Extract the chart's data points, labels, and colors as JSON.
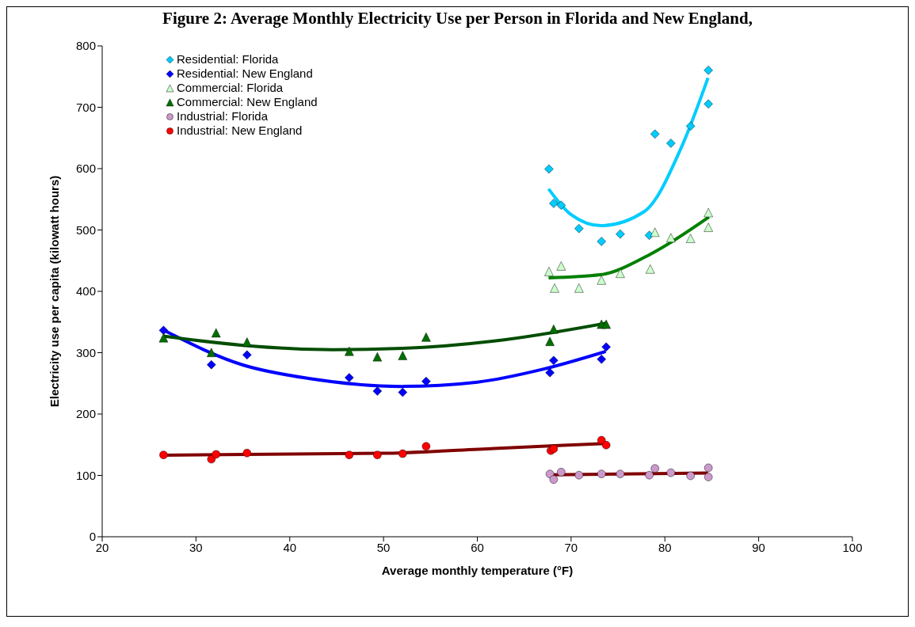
{
  "chart_data": {
    "type": "scatter",
    "title": "Figure 2: Average Monthly Electricity Use per Person in Florida and New England,",
    "xlabel": "Average monthly temperature (°F)",
    "ylabel": "Electricity use per capita (kilowatt hours)",
    "xlim": [
      20,
      100
    ],
    "xticks": [
      20,
      30,
      40,
      50,
      60,
      70,
      80,
      90,
      100
    ],
    "ylim": [
      0,
      800
    ],
    "yticks": [
      0,
      100,
      200,
      300,
      400,
      500,
      600,
      700,
      800
    ],
    "grid": false,
    "legend": "top left",
    "series": [
      {
        "name": "Residential: Florida",
        "color": "#00ccff",
        "marker": "diamond",
        "x": [
          67.6,
          68.1,
          68.9,
          70.8,
          73.2,
          75.2,
          78.3,
          78.9,
          80.6,
          82.7,
          84.6,
          84.6
        ],
        "values": [
          600,
          544,
          541,
          503,
          482,
          494,
          492,
          657,
          642,
          670,
          761,
          706
        ]
      },
      {
        "name": "Residential: New England",
        "color": "#0000ff",
        "marker": "diamond",
        "x": [
          26.5,
          31.6,
          32.1,
          35.4,
          46.3,
          49.3,
          52.0,
          54.5,
          67.7,
          68.1,
          73.2,
          73.7
        ],
        "values": [
          337,
          281,
          null,
          297,
          260,
          238,
          236,
          254,
          268,
          288,
          290,
          310
        ]
      },
      {
        "name": "Commercial: Florida",
        "color": "#ccffcc",
        "marker": "triangle",
        "x": [
          67.6,
          68.2,
          68.9,
          70.8,
          73.2,
          75.2,
          78.4,
          78.9,
          80.6,
          82.7,
          84.6,
          84.6
        ],
        "values": [
          433,
          406,
          442,
          406,
          419,
          430,
          437,
          497,
          488,
          487,
          529,
          505
        ]
      },
      {
        "name": "Commercial: New England",
        "color": "#007000",
        "marker": "triangle",
        "x": [
          26.5,
          31.6,
          32.1,
          35.4,
          46.3,
          49.3,
          52.0,
          54.5,
          67.7,
          68.1,
          73.2,
          73.7
        ],
        "values": [
          325,
          301,
          333,
          318,
          303,
          294,
          296,
          326,
          319,
          339,
          347,
          347
        ]
      },
      {
        "name": "Industrial: Florida",
        "color": "#cc99cc",
        "marker": "circle",
        "x": [
          67.7,
          68.1,
          68.9,
          70.8,
          73.2,
          75.2,
          78.3,
          78.9,
          80.6,
          82.7,
          84.6,
          84.6
        ],
        "values": [
          103,
          94,
          106,
          101,
          103,
          103,
          101,
          112,
          105,
          100,
          113,
          98
        ]
      },
      {
        "name": "Industrial: New England",
        "color": "#ff0000",
        "marker": "circle",
        "x": [
          26.5,
          31.6,
          32.1,
          35.4,
          46.3,
          49.3,
          52.0,
          54.5,
          67.8,
          68.1,
          73.2,
          73.7
        ],
        "values": [
          134,
          127,
          135,
          137,
          134,
          134,
          136,
          148,
          141,
          144,
          158,
          150
        ]
      },
      {
        "type": "line",
        "color": "#00ccff",
        "x": [
          67.6,
          70.0,
          73.2,
          77.8,
          81.8,
          84.6
        ],
        "values": [
          567,
          525,
          507,
          530,
          636,
          748
        ]
      },
      {
        "type": "line",
        "color": "#0000ff",
        "x": [
          26.5,
          35,
          42,
          52,
          60,
          67,
          73.7
        ],
        "values": [
          337,
          280,
          258,
          245,
          252,
          273,
          302
        ]
      },
      {
        "type": "line",
        "color": "#008000",
        "x": [
          67.6,
          73.1,
          78.4,
          84.7
        ],
        "values": [
          422,
          427,
          460,
          521
        ]
      },
      {
        "type": "line",
        "color": "#004d00",
        "x": [
          26.5,
          35,
          44.6,
          52,
          61.8,
          73.7
        ],
        "values": [
          327,
          312,
          305,
          307,
          319,
          348
        ]
      },
      {
        "type": "line",
        "color": "#800000",
        "x": [
          67.7,
          84.6
        ],
        "values": [
          101,
          104
        ]
      },
      {
        "type": "line",
        "color": "#800000",
        "x": [
          26.5,
          50,
          61.8,
          73.7
        ],
        "values": [
          133,
          136,
          144,
          152
        ]
      }
    ]
  }
}
